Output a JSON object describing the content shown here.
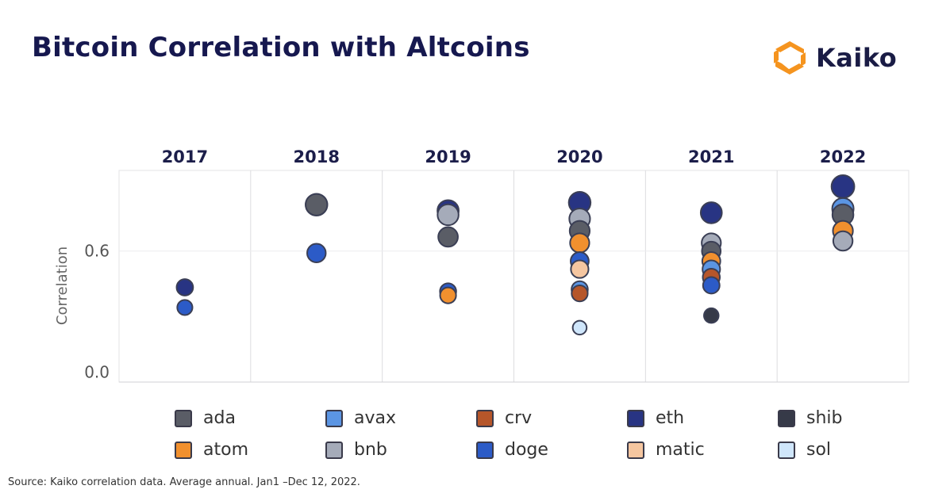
{
  "title": "Bitcoin Correlation with Altcoins",
  "brand": {
    "name": "Kaiko",
    "logo_icon": "kaiko-logo-icon",
    "logo_color": "#f5941f"
  },
  "source": "Source: Kaiko correlation data. Average annual. Jan1 –Dec 12, 2022.",
  "colors": {
    "ada": "#5a5d66",
    "avax": "#5b95e3",
    "crv": "#b6562a",
    "eth": "#283483",
    "shib": "#363a48",
    "atom": "#f1902e",
    "bnb": "#a5abb9",
    "doge": "#2c5bc7",
    "matic": "#f5c6a0",
    "sol": "#cfe6fb"
  },
  "legend": [
    {
      "key": "ada",
      "label": "ada"
    },
    {
      "key": "avax",
      "label": "avax"
    },
    {
      "key": "crv",
      "label": "crv"
    },
    {
      "key": "eth",
      "label": "eth"
    },
    {
      "key": "shib",
      "label": "shib"
    },
    {
      "key": "atom",
      "label": "atom"
    },
    {
      "key": "bnb",
      "label": "bnb"
    },
    {
      "key": "doge",
      "label": "doge"
    },
    {
      "key": "matic",
      "label": "matic"
    },
    {
      "key": "sol",
      "label": "sol"
    }
  ],
  "chart_data": {
    "type": "scatter",
    "title": "Bitcoin Correlation with Altcoins",
    "ylabel": "Correlation",
    "categories": [
      "2017",
      "2018",
      "2019",
      "2020",
      "2021",
      "2022"
    ],
    "y_ticks": [
      0.0,
      0.6
    ],
    "ylim": [
      -0.05,
      1.0
    ],
    "grid": true,
    "legend_position": "bottom",
    "points": [
      {
        "year": "2017",
        "asset": "eth",
        "value": 0.42
      },
      {
        "year": "2017",
        "asset": "doge",
        "value": 0.32
      },
      {
        "year": "2018",
        "asset": "eth",
        "value": 0.83
      },
      {
        "year": "2018",
        "asset": "ada",
        "value": 0.83
      },
      {
        "year": "2018",
        "asset": "doge",
        "value": 0.59
      },
      {
        "year": "2019",
        "asset": "eth",
        "value": 0.8
      },
      {
        "year": "2019",
        "asset": "bnb",
        "value": 0.78
      },
      {
        "year": "2019",
        "asset": "ada",
        "value": 0.67
      },
      {
        "year": "2019",
        "asset": "doge",
        "value": 0.4
      },
      {
        "year": "2019",
        "asset": "atom",
        "value": 0.38
      },
      {
        "year": "2020",
        "asset": "eth",
        "value": 0.84
      },
      {
        "year": "2020",
        "asset": "bnb",
        "value": 0.76
      },
      {
        "year": "2020",
        "asset": "ada",
        "value": 0.7
      },
      {
        "year": "2020",
        "asset": "atom",
        "value": 0.64
      },
      {
        "year": "2020",
        "asset": "doge",
        "value": 0.55
      },
      {
        "year": "2020",
        "asset": "matic",
        "value": 0.51
      },
      {
        "year": "2020",
        "asset": "crv",
        "value": 0.39
      },
      {
        "year": "2020",
        "asset": "avax",
        "value": 0.41
      },
      {
        "year": "2020",
        "asset": "sol",
        "value": 0.22
      },
      {
        "year": "2021",
        "asset": "eth",
        "value": 0.79
      },
      {
        "year": "2021",
        "asset": "bnb",
        "value": 0.64
      },
      {
        "year": "2021",
        "asset": "ada",
        "value": 0.6
      },
      {
        "year": "2021",
        "asset": "atom",
        "value": 0.55
      },
      {
        "year": "2021",
        "asset": "avax",
        "value": 0.51
      },
      {
        "year": "2021",
        "asset": "crv",
        "value": 0.47
      },
      {
        "year": "2021",
        "asset": "doge",
        "value": 0.43
      },
      {
        "year": "2021",
        "asset": "shib",
        "value": 0.28
      },
      {
        "year": "2022",
        "asset": "eth",
        "value": 0.92
      },
      {
        "year": "2022",
        "asset": "avax",
        "value": 0.81
      },
      {
        "year": "2022",
        "asset": "ada",
        "value": 0.78
      },
      {
        "year": "2022",
        "asset": "atom",
        "value": 0.7
      },
      {
        "year": "2022",
        "asset": "bnb",
        "value": 0.65
      }
    ]
  }
}
